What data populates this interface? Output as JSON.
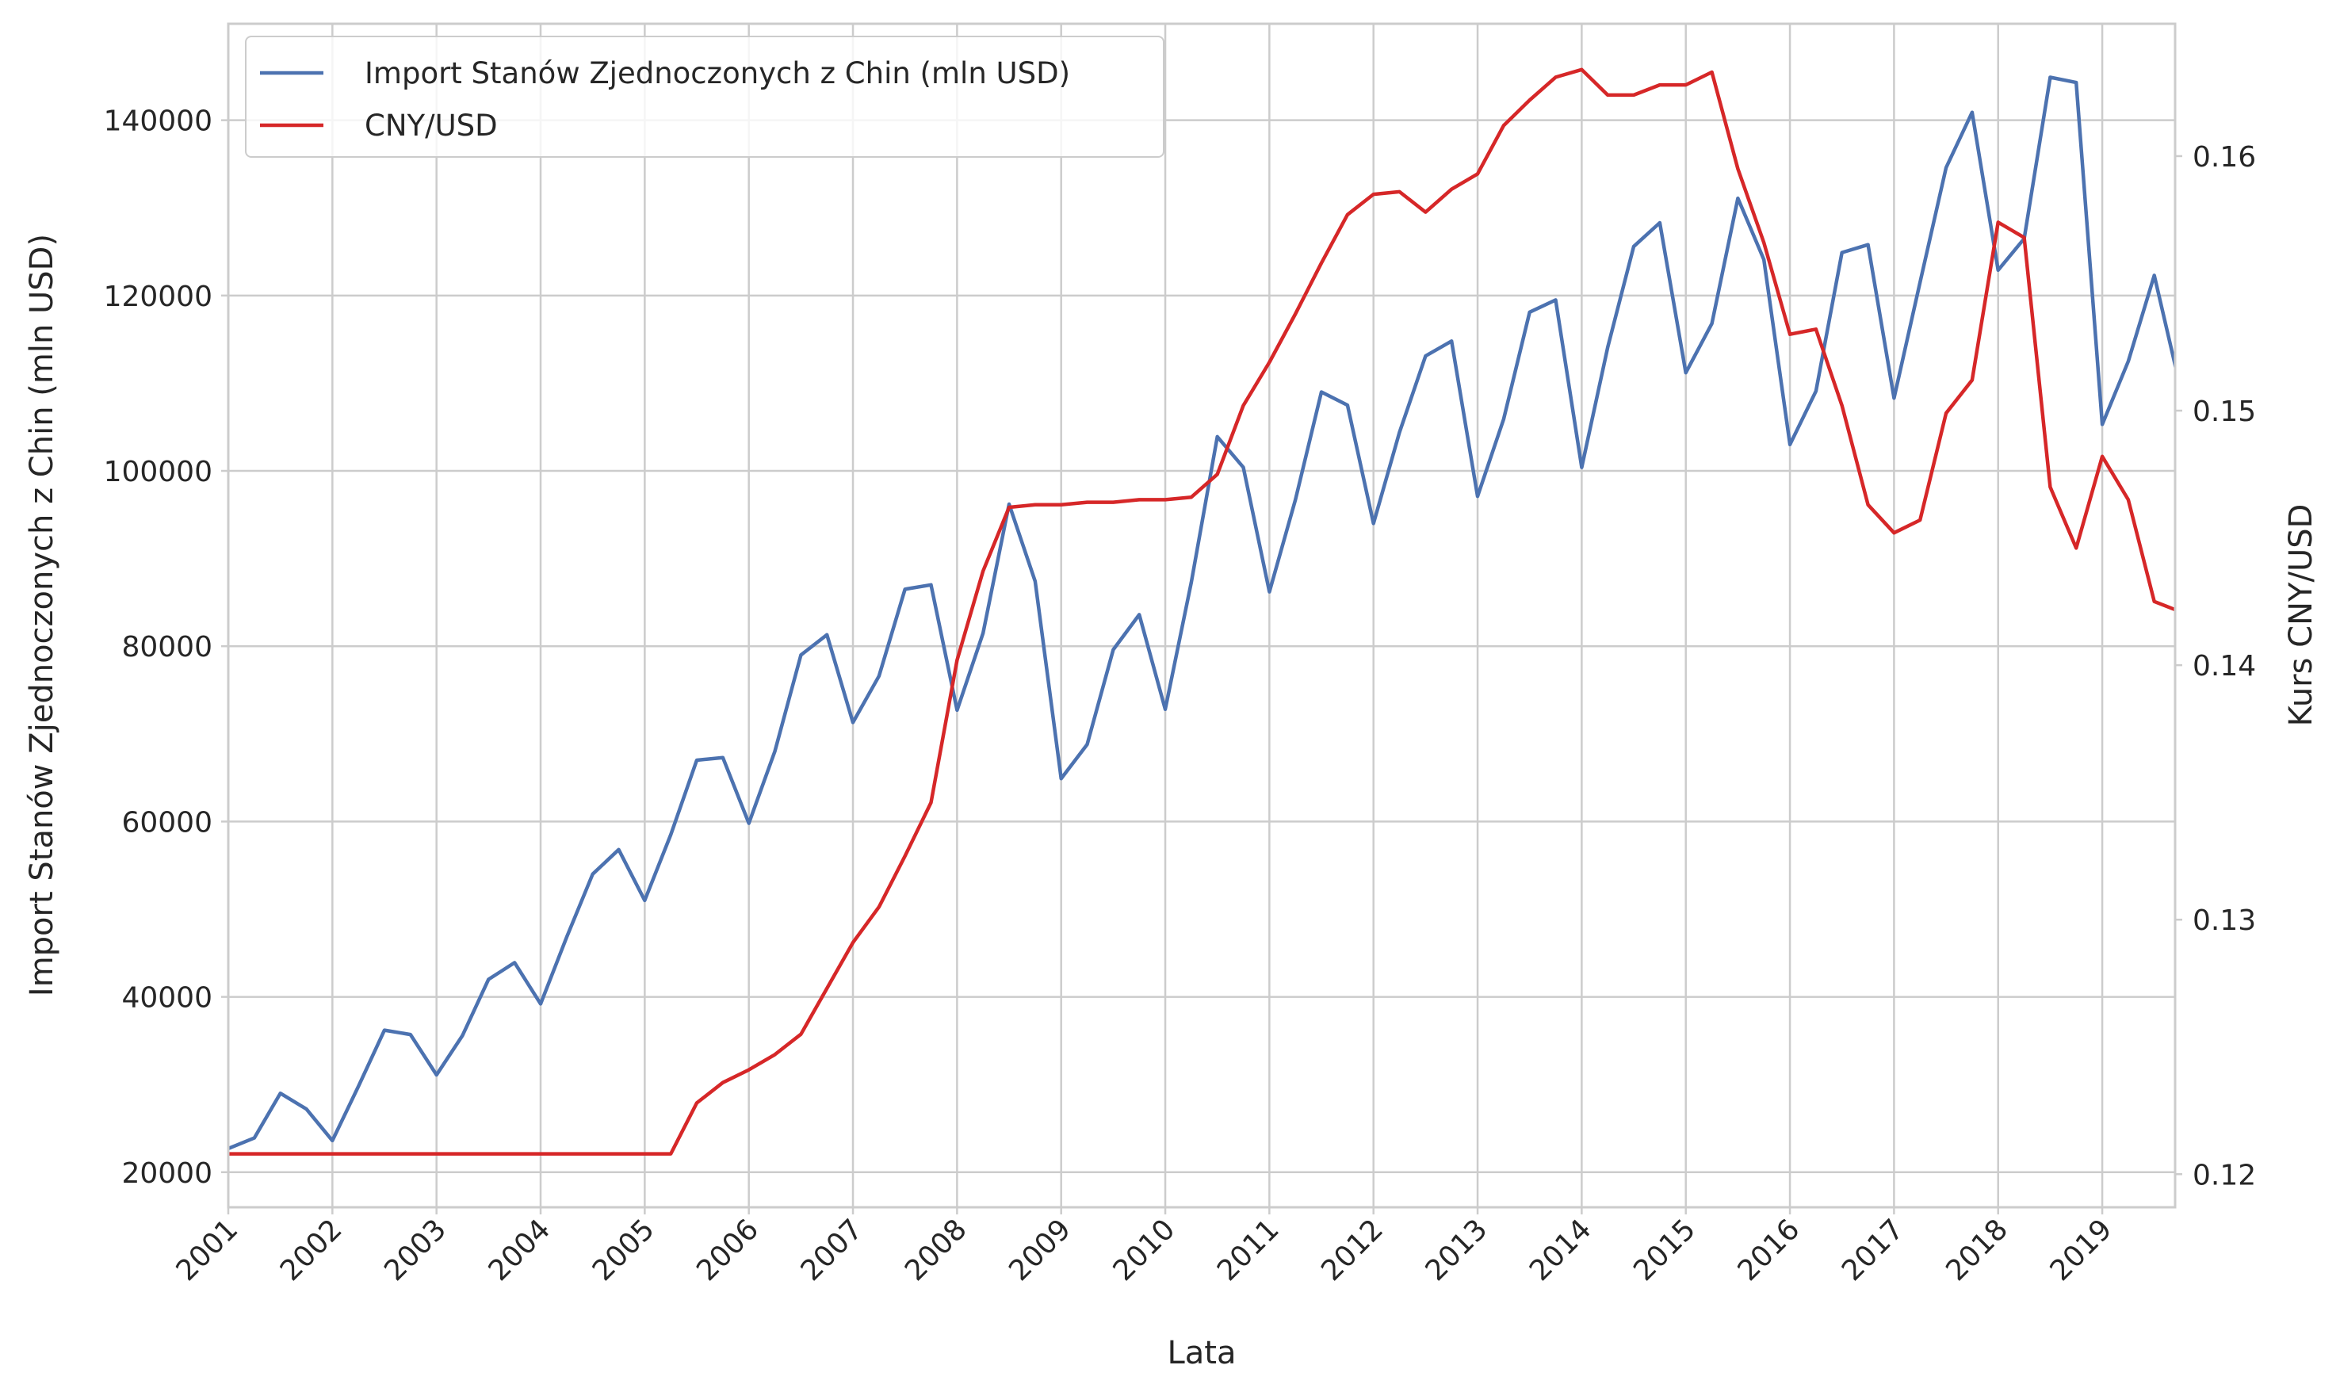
{
  "chart_data": {
    "type": "line",
    "xlabel": "Lata",
    "ylabel": "Import Stanów Zjednoczonych z Chin (mln USD)",
    "y2label": "Kurs CNY/USD",
    "x_tick_labels": [
      "2001",
      "2002",
      "2003",
      "2004",
      "2005",
      "2006",
      "2007",
      "2008",
      "2009",
      "2010",
      "2011",
      "2012",
      "2013",
      "2014",
      "2015",
      "2016",
      "2017",
      "2018",
      "2019"
    ],
    "y_ticks": [
      20000,
      40000,
      60000,
      80000,
      100000,
      120000,
      140000
    ],
    "y2_ticks": [
      "0.12",
      "0.13",
      "0.14",
      "0.15",
      "0.16"
    ],
    "xlim": [
      2001.0,
      2019.7
    ],
    "ylim": [
      16000,
      151000
    ],
    "y2lim": [
      0.1187,
      0.1652
    ],
    "grid": true,
    "legend_position": "top-left",
    "x": [
      2001.0,
      2001.25,
      2001.5,
      2001.75,
      2002.0,
      2002.25,
      2002.5,
      2002.75,
      2003.0,
      2003.25,
      2003.5,
      2003.75,
      2004.0,
      2004.25,
      2004.5,
      2004.75,
      2005.0,
      2005.25,
      2005.5,
      2005.75,
      2006.0,
      2006.25,
      2006.5,
      2006.75,
      2007.0,
      2007.25,
      2007.5,
      2007.75,
      2008.0,
      2008.25,
      2008.5,
      2008.75,
      2009.0,
      2009.25,
      2009.5,
      2009.75,
      2010.0,
      2010.25,
      2010.5,
      2010.75,
      2011.0,
      2011.25,
      2011.5,
      2011.75,
      2012.0,
      2012.25,
      2012.5,
      2012.75,
      2013.0,
      2013.25,
      2013.5,
      2013.75,
      2014.0,
      2014.25,
      2014.5,
      2014.75,
      2015.0,
      2015.25,
      2015.5,
      2015.75,
      2016.0,
      2016.25,
      2016.5,
      2016.75,
      2017.0,
      2017.25,
      2017.5,
      2017.75,
      2018.0,
      2018.25,
      2018.5,
      2018.75,
      2019.0,
      2019.25,
      2019.5,
      2019.75
    ],
    "series": [
      {
        "name": "Import Stanów Zjednoczonych z Chin (mln USD)",
        "color": "#4c72b0",
        "axis": "left",
        "values": [
          22700,
          23900,
          29000,
          27200,
          23600,
          29800,
          36200,
          35700,
          31100,
          35600,
          42000,
          43900,
          39200,
          46800,
          54000,
          56800,
          51000,
          58500,
          67000,
          67300,
          59800,
          68000,
          79000,
          81300,
          71300,
          76600,
          86500,
          87000,
          72700,
          81500,
          96200,
          87400,
          64900,
          68800,
          79600,
          83600,
          72800,
          87300,
          103900,
          100400,
          86200,
          96700,
          109000,
          107500,
          94000,
          104400,
          113100,
          114800,
          97100,
          105900,
          118100,
          119500,
          100400,
          114100,
          125600,
          128300,
          111200,
          116800,
          131100,
          124100,
          103000,
          109100,
          124900,
          125800,
          108300,
          121500,
          134600,
          140900,
          122900,
          126500,
          144900,
          144300,
          105300,
          112500,
          122300,
          109500
        ]
      },
      {
        "name": "CNY/USD",
        "color": "#d62728",
        "axis": "right",
        "values": [
          0.1208,
          0.1208,
          0.1208,
          0.1208,
          0.1208,
          0.1208,
          0.1208,
          0.1208,
          0.1208,
          0.1208,
          0.1208,
          0.1208,
          0.1208,
          0.1208,
          0.1208,
          0.1208,
          0.1208,
          0.1208,
          0.1228,
          0.1236,
          0.1241,
          0.1247,
          0.1255,
          0.1273,
          0.1291,
          0.1305,
          0.1325,
          0.1346,
          0.1402,
          0.1437,
          0.1462,
          0.1463,
          0.1463,
          0.1464,
          0.1464,
          0.1465,
          0.1465,
          0.1466,
          0.1475,
          0.1502,
          0.1519,
          0.1538,
          0.1558,
          0.1577,
          0.1585,
          0.1586,
          0.1578,
          0.1587,
          0.1593,
          0.1612,
          0.1622,
          0.1631,
          0.1634,
          0.1624,
          0.1624,
          0.1628,
          0.1628,
          0.1633,
          0.1595,
          0.1566,
          0.153,
          0.1532,
          0.1502,
          0.1463,
          0.1452,
          0.1457,
          0.1499,
          0.1512,
          0.1574,
          0.1568,
          0.147,
          0.1446,
          0.1482,
          0.1465,
          0.1425,
          0.1421
        ]
      }
    ]
  }
}
